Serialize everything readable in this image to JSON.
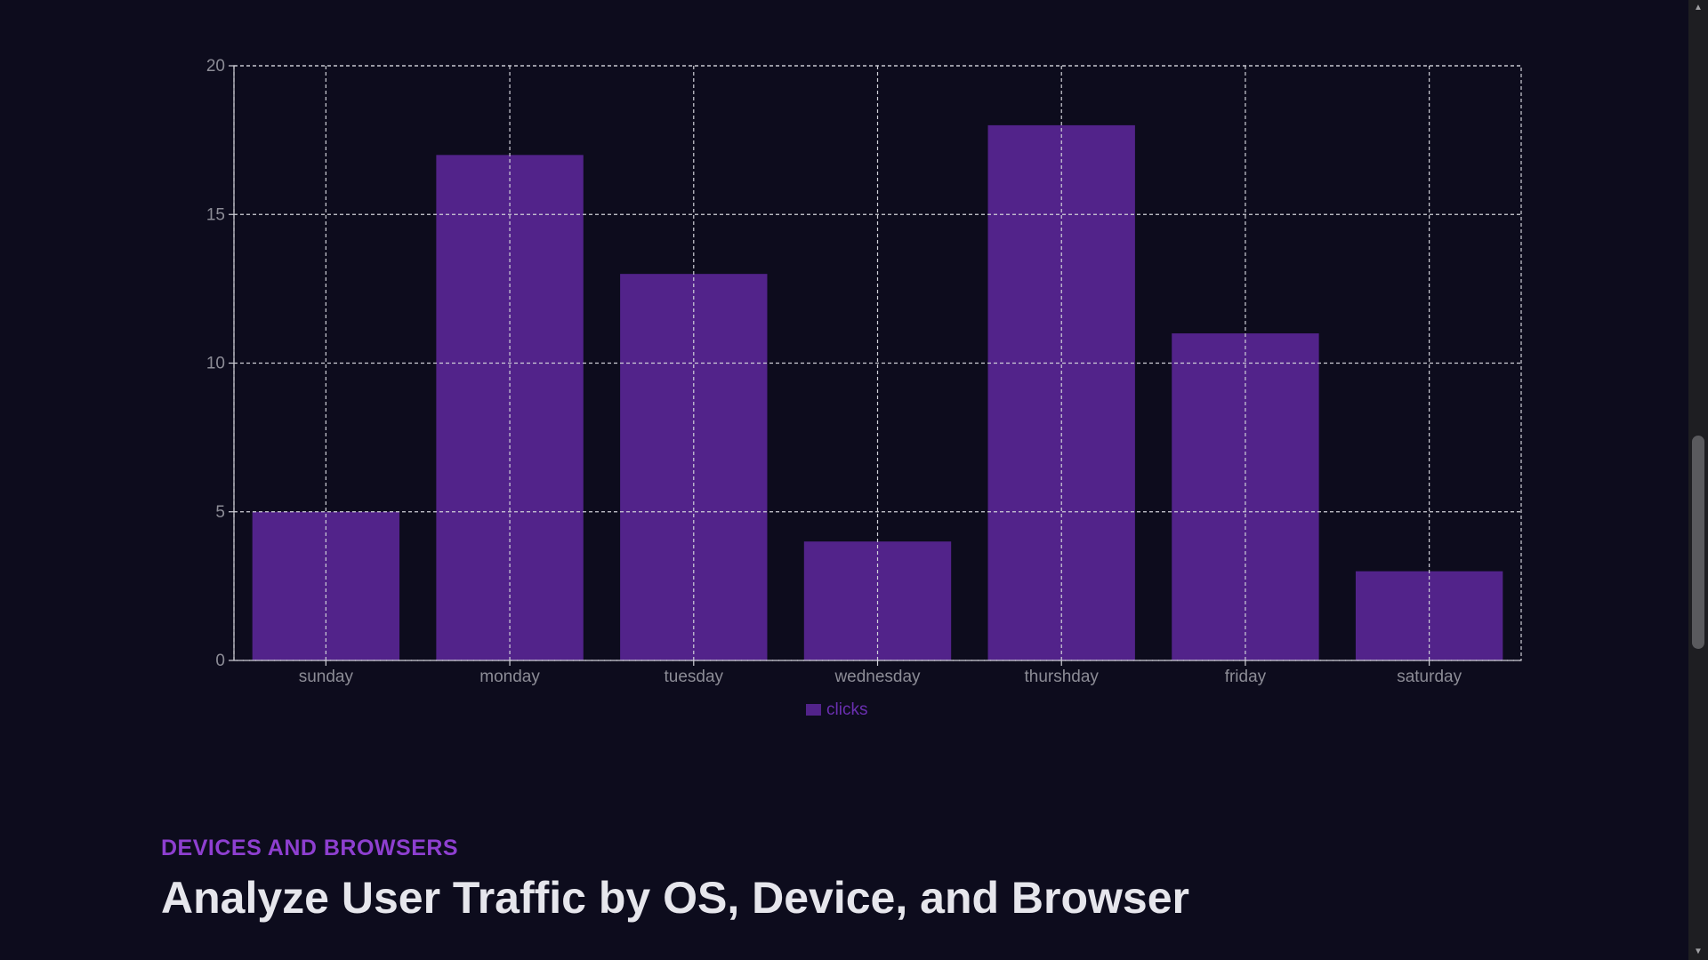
{
  "chart_data": {
    "type": "bar",
    "categories": [
      "sunday",
      "monday",
      "tuesday",
      "wednesday",
      "thurshday",
      "friday",
      "saturday"
    ],
    "series": [
      {
        "name": "clicks",
        "values": [
          5,
          17,
          13,
          4,
          18,
          11,
          3
        ],
        "color": "#52238a"
      }
    ],
    "ylim": [
      0,
      20
    ],
    "yticks": [
      0,
      5,
      10,
      15,
      20
    ],
    "grid": true,
    "legend": "bottom-center"
  },
  "section": {
    "eyebrow": "DEVICES AND BROWSERS",
    "title": "Analyze User Traffic by OS, Device, and Browser"
  },
  "colors": {
    "background": "#0d0c1d",
    "accent": "#8e3fd0",
    "bar": "#52238a",
    "grid": "#d0d0d8",
    "axis_text": "#8c8c96"
  }
}
